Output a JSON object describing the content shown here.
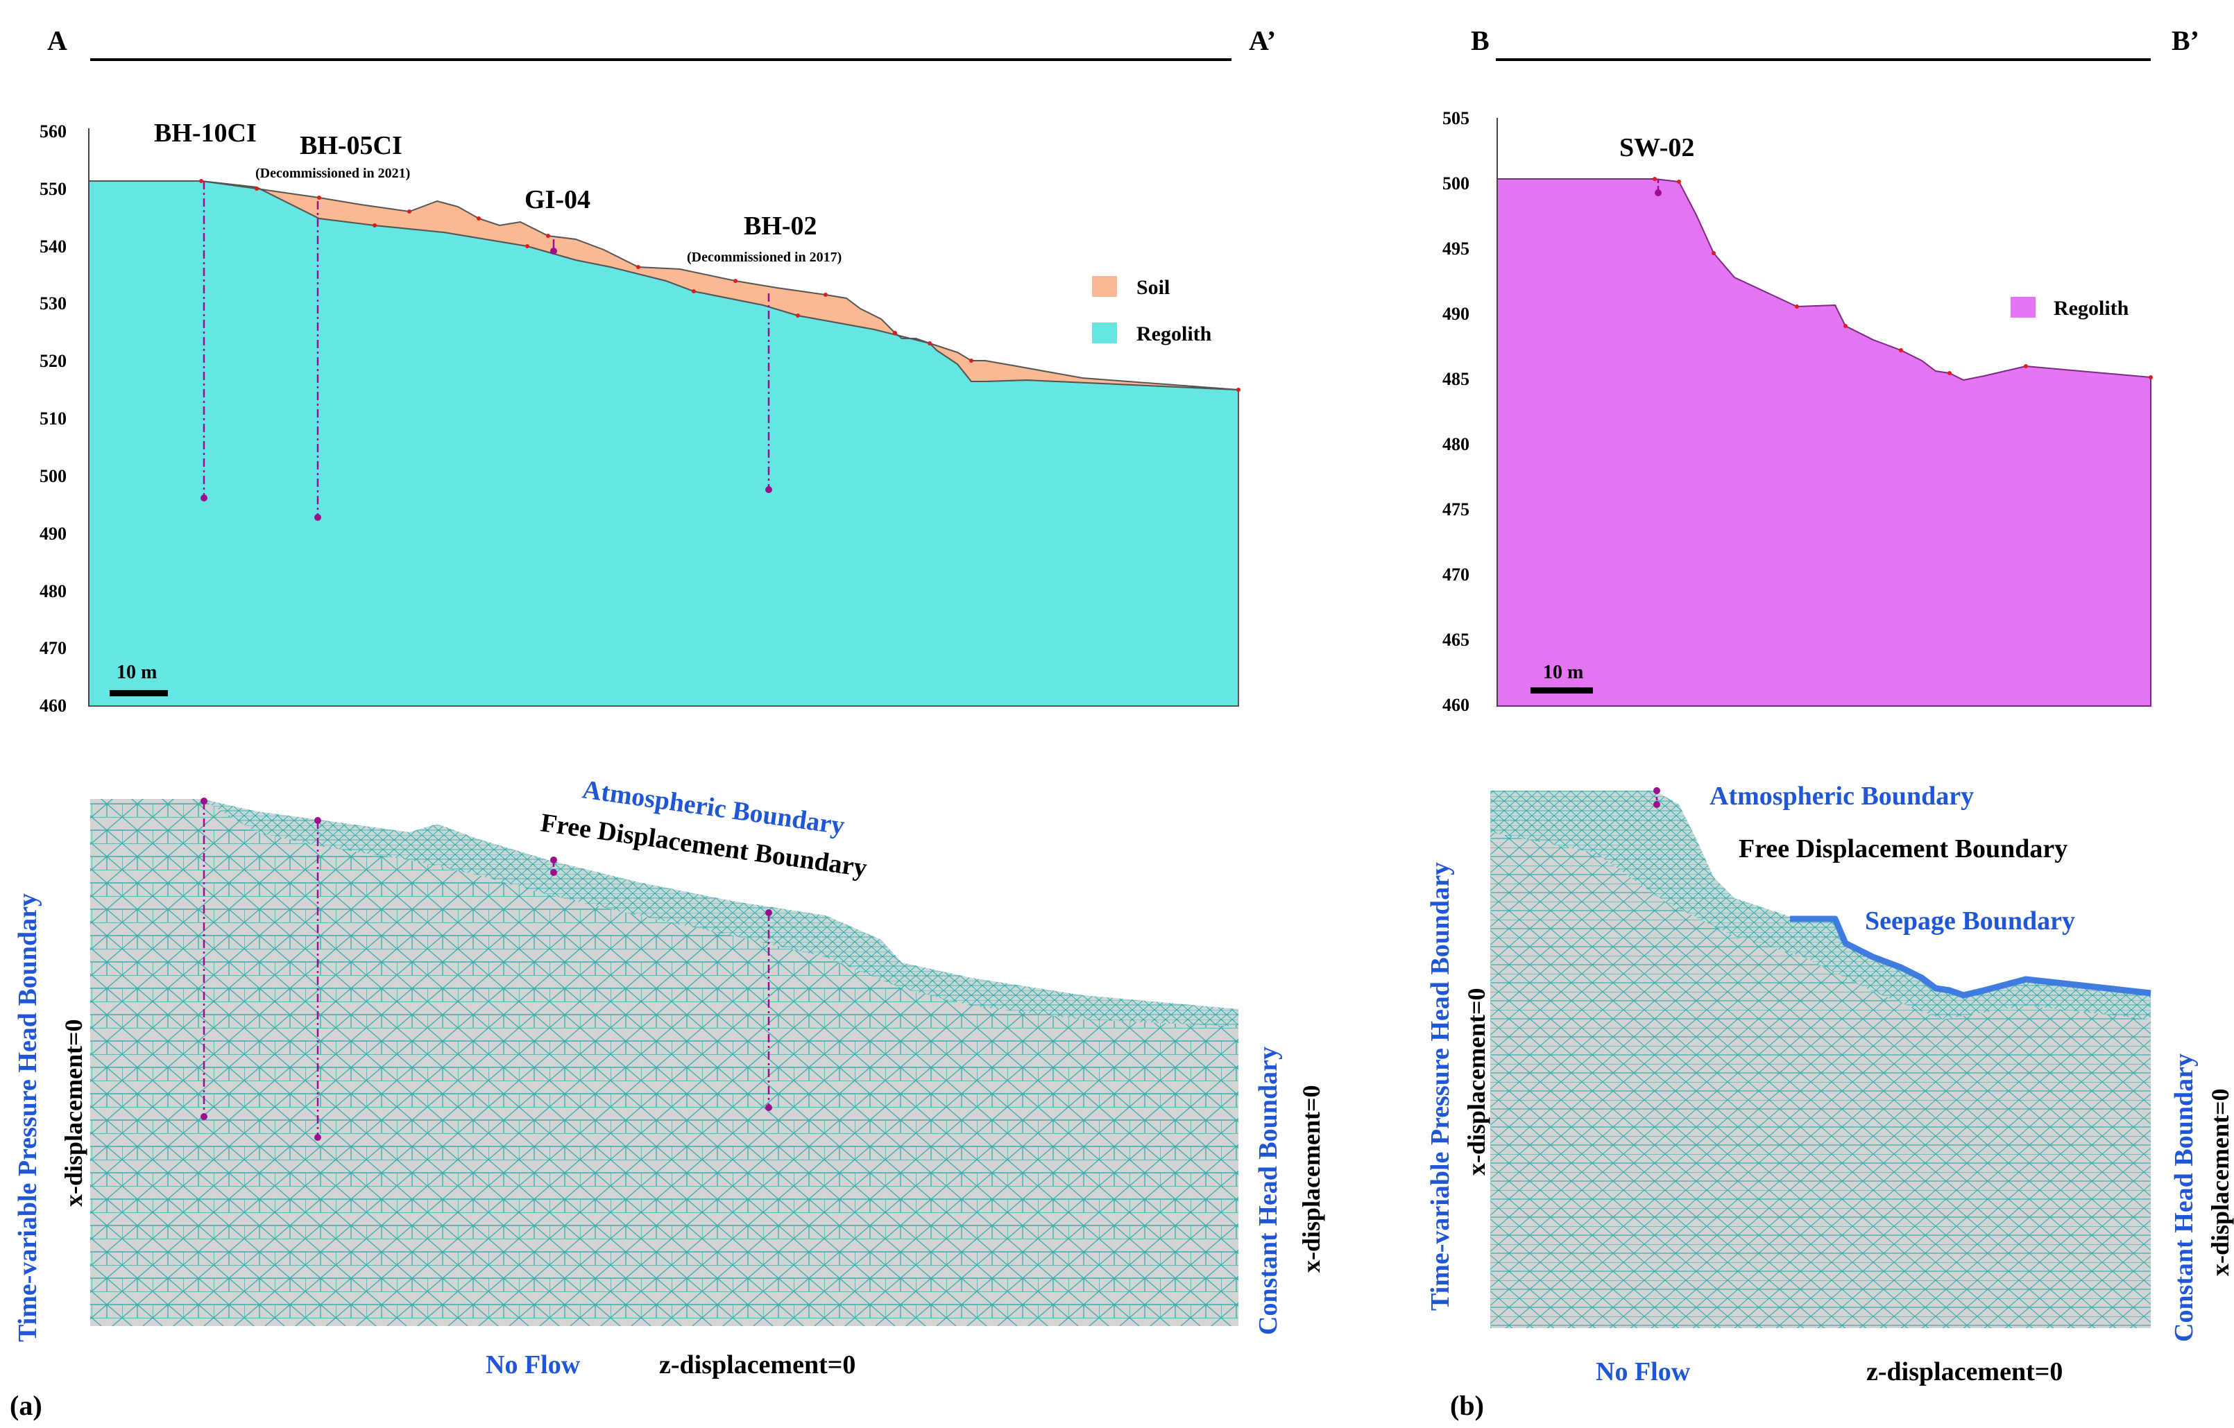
{
  "colors": {
    "soil": "#F9B993",
    "regolith_a": "#66E6E3",
    "regolith_b": "#E574F2",
    "mesh_fill": "#D4D4D4",
    "mesh_line": "#3AAFAF",
    "blue_label": "#1F56D6",
    "seepage": "#3E7CE0",
    "borehole": "#9B0E8C",
    "node": "#E01B1B"
  },
  "section_a": {
    "start_label": "A",
    "end_label": "A’",
    "y_ticks": [
      "560",
      "550",
      "540",
      "530",
      "520",
      "510",
      "500",
      "490",
      "480",
      "470",
      "460"
    ],
    "boreholes": [
      {
        "name": "BH-10CI",
        "note": ""
      },
      {
        "name": "BH-05CI",
        "note": "(Decommissioned in 2021)"
      },
      {
        "name": "GI-04",
        "note": ""
      },
      {
        "name": "BH-02",
        "note": "(Decommissioned in 2017)"
      }
    ],
    "legend": [
      {
        "label": "Soil",
        "color": "#F9B993"
      },
      {
        "label": "Regolith",
        "color": "#66E6E3"
      }
    ],
    "scale_bar": "10 m"
  },
  "section_b": {
    "start_label": "B",
    "end_label": "B’",
    "y_ticks": [
      "505",
      "500",
      "495",
      "490",
      "485",
      "480",
      "475",
      "470",
      "465",
      "460"
    ],
    "boreholes": [
      {
        "name": "SW-02",
        "note": ""
      }
    ],
    "legend": [
      {
        "label": "Regolith",
        "color": "#E574F2"
      }
    ],
    "scale_bar": "10 m"
  },
  "mesh_a": {
    "panel_label": "(a)",
    "atmospheric": "Atmospheric Boundary",
    "free_disp": "Free Displacement Boundary",
    "left_boundary": "Time-variable Pressure Head Boundary",
    "left_disp": "x-displacement=0",
    "right_boundary": "Constant Head Boundary",
    "right_disp": "x-displacement=0",
    "bottom_flow": "No Flow",
    "bottom_disp": "z-displacement=0"
  },
  "mesh_b": {
    "panel_label": "(b)",
    "atmospheric": "Atmospheric Boundary",
    "free_disp": "Free Displacement Boundary",
    "seepage": "Seepage Boundary",
    "left_boundary": "Time-variable Pressure Head Boundary",
    "left_disp": "x-displacement=0",
    "right_boundary": "Constant Head Boundary",
    "right_disp": "x-displacement=0",
    "bottom_flow": "No Flow",
    "bottom_disp": "z-displacement=0"
  }
}
